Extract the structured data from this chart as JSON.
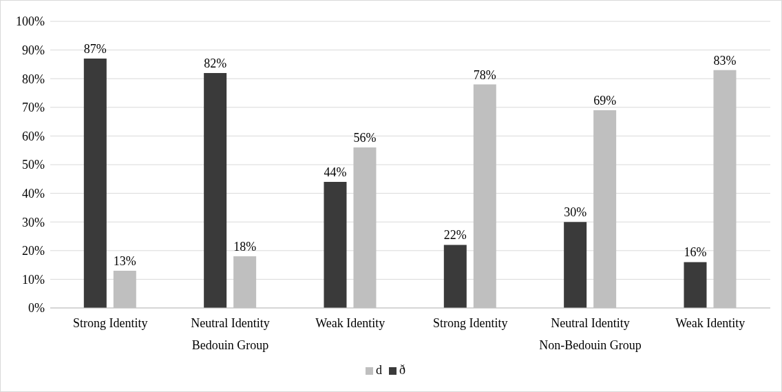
{
  "chart_data": {
    "type": "bar",
    "categories": [
      "Strong Identity",
      "Neutral Identity",
      "Weak Identity",
      "Strong Identity",
      "Neutral Identity",
      "Weak Identity"
    ],
    "annotations": [
      "Bedouin Group",
      "Non-Bedouin Group"
    ],
    "series": [
      {
        "name": "ð",
        "color": "#3a3a3a",
        "values": [
          87,
          82,
          44,
          22,
          30,
          16
        ],
        "value_labels": [
          "87%",
          "82%",
          "44%",
          "22%",
          "30%",
          "16%"
        ]
      },
      {
        "name": "d",
        "color": "#bfbfbf",
        "values": [
          13,
          18,
          56,
          78,
          69,
          83
        ],
        "value_labels": [
          "13%",
          "18%",
          "56%",
          "78%",
          "69%",
          "83%"
        ]
      }
    ],
    "ylim": [
      0,
      100
    ],
    "yticks": [
      {
        "value": 0,
        "label": "0%"
      },
      {
        "value": 10,
        "label": "10%"
      },
      {
        "value": 20,
        "label": "20%"
      },
      {
        "value": 30,
        "label": "30%"
      },
      {
        "value": 40,
        "label": "40%"
      },
      {
        "value": 50,
        "label": "50%"
      },
      {
        "value": 60,
        "label": "60%"
      },
      {
        "value": 70,
        "label": "70%"
      },
      {
        "value": 80,
        "label": "80%"
      },
      {
        "value": 90,
        "label": "90%"
      },
      {
        "value": 100,
        "label": "100%"
      }
    ],
    "grid": "y",
    "legend": "bottom"
  }
}
